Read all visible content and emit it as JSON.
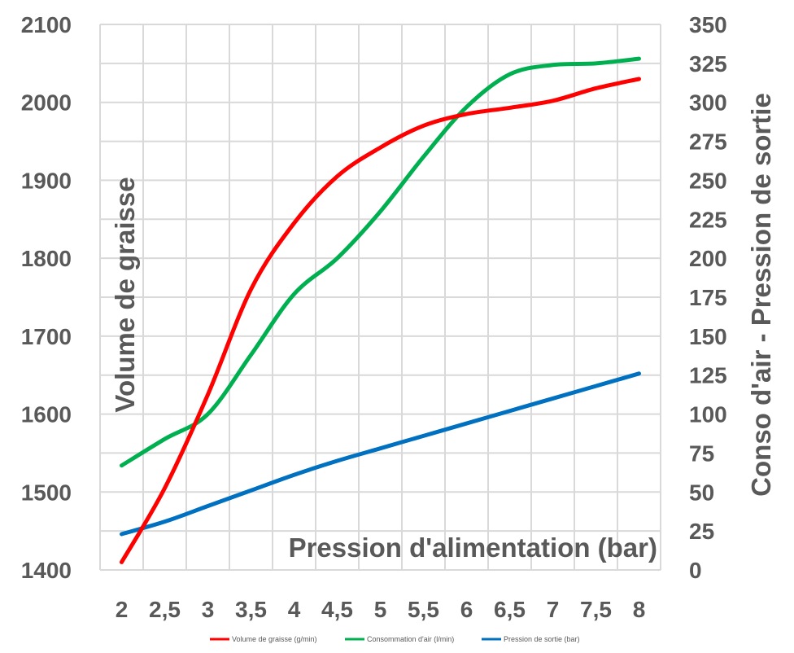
{
  "chart_data": {
    "type": "line",
    "xlabel": "Pression d'alimentation (bar)",
    "ylabel_left": "Volume de graisse",
    "ylabel_right": "Conso d'air - Pression de sortie",
    "x": [
      2,
      2.5,
      3,
      3.5,
      4,
      4.5,
      5,
      5.5,
      6,
      6.5,
      7,
      7.5,
      8
    ],
    "x_tick_labels": [
      "2",
      "2,5",
      "3",
      "3,5",
      "4",
      "4,5",
      "5",
      "5,5",
      "6",
      "6,5",
      "7",
      "7,5",
      "8"
    ],
    "ylim_left": [
      1400,
      2100
    ],
    "ylim_right": [
      0,
      350
    ],
    "y_ticks_left": [
      "1400",
      "1500",
      "1600",
      "1700",
      "1800",
      "1900",
      "2000",
      "2100"
    ],
    "y_ticks_right": [
      "0",
      "25",
      "50",
      "75",
      "100",
      "125",
      "150",
      "175",
      "200",
      "225",
      "250",
      "275",
      "300",
      "325",
      "350"
    ],
    "grid": true,
    "legend_position": "bottom",
    "series": [
      {
        "name": "Volume de graisse (g/min)",
        "axis": "left",
        "color": "#ff0000",
        "values": [
          1410,
          1505,
          1625,
          1760,
          1845,
          1905,
          1942,
          1970,
          1985,
          1993,
          2002,
          2018,
          2030
        ]
      },
      {
        "name": "Consommation d'air (l/min)",
        "axis": "right",
        "color": "#00b050",
        "values": [
          67,
          84,
          100,
          138,
          177,
          200,
          230,
          265,
          297,
          318,
          324,
          325,
          328
        ]
      },
      {
        "name": "Pression de sortie (bar)",
        "axis": "right",
        "color": "#0070c0",
        "values": [
          23,
          31,
          41,
          51,
          61,
          70,
          78,
          86,
          94,
          102,
          110,
          118,
          126
        ]
      }
    ]
  }
}
